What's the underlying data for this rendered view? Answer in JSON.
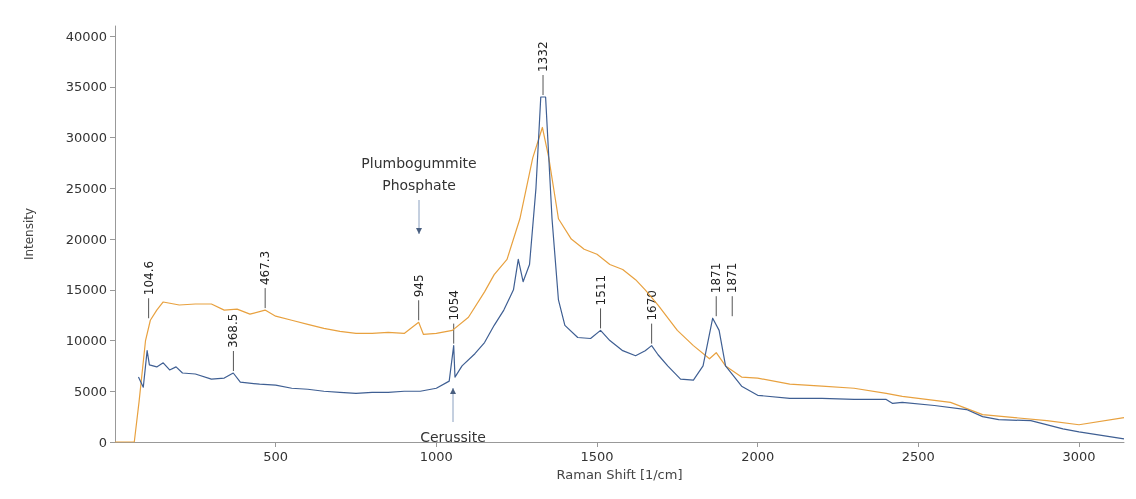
{
  "chart_data": {
    "type": "line",
    "xlabel": "Raman Shift [1/cm]",
    "ylabel": "Intensity",
    "xlim": [
      0,
      3140
    ],
    "xticks": [
      500,
      1000,
      1500,
      2000,
      2500,
      3000
    ],
    "ylim": [
      0,
      41000
    ],
    "yticks": [
      0,
      5000,
      10000,
      15000,
      20000,
      25000,
      30000,
      35000,
      40000
    ],
    "grid": false,
    "marker": "none",
    "line_style": "solid",
    "series": [
      {
        "color": "#e8a13f",
        "x": [
          0,
          60,
          75,
          95,
          110,
          130,
          150,
          200,
          250,
          300,
          340,
          380,
          420,
          467,
          500,
          550,
          600,
          650,
          700,
          750,
          800,
          850,
          900,
          945,
          960,
          1000,
          1050,
          1100,
          1150,
          1180,
          1220,
          1260,
          1300,
          1330,
          1350,
          1380,
          1420,
          1460,
          1500,
          1540,
          1580,
          1620,
          1650,
          1690,
          1750,
          1800,
          1850,
          1871,
          1900,
          1950,
          2000,
          2100,
          2200,
          2300,
          2400,
          2450,
          2500,
          2600,
          2700,
          2800,
          2900,
          3000,
          3140
        ],
        "values": [
          0,
          0,
          4000,
          10000,
          12000,
          13000,
          13800,
          13500,
          13600,
          13600,
          13000,
          13100,
          12600,
          13000,
          12400,
          12000,
          11600,
          11200,
          10900,
          10700,
          10700,
          10800,
          10700,
          11800,
          10600,
          10700,
          11000,
          12300,
          14800,
          16500,
          18000,
          22000,
          28000,
          31000,
          28000,
          22000,
          20000,
          19000,
          18500,
          17500,
          17000,
          16000,
          15000,
          13500,
          11000,
          9500,
          8200,
          8800,
          7500,
          6400,
          6300,
          5700,
          5500,
          5300,
          4800,
          4500,
          4300,
          3900,
          2700,
          2400,
          2100,
          1700,
          2400
        ]
      },
      {
        "color": "#3f5f93",
        "x": [
          73,
          88,
          100,
          107,
          130,
          150,
          170,
          190,
          210,
          250,
          300,
          340,
          368,
          390,
          450,
          500,
          550,
          600,
          650,
          700,
          750,
          800,
          850,
          900,
          950,
          1000,
          1040,
          1054,
          1058,
          1080,
          1120,
          1150,
          1180,
          1210,
          1240,
          1255,
          1270,
          1290,
          1310,
          1325,
          1340,
          1360,
          1380,
          1400,
          1440,
          1480,
          1511,
          1540,
          1580,
          1620,
          1650,
          1670,
          1690,
          1720,
          1760,
          1800,
          1830,
          1860,
          1880,
          1900,
          1950,
          2000,
          2100,
          2200,
          2300,
          2400,
          2420,
          2450,
          2550,
          2650,
          2700,
          2750,
          2850,
          2950,
          3000,
          3140
        ],
        "values": [
          6400,
          5400,
          9000,
          7600,
          7400,
          7800,
          7100,
          7400,
          6800,
          6700,
          6200,
          6300,
          6800,
          5900,
          5700,
          5600,
          5300,
          5200,
          5000,
          4900,
          4800,
          4900,
          4900,
          5000,
          5000,
          5300,
          6000,
          9500,
          6400,
          7500,
          8700,
          9800,
          11500,
          13000,
          15000,
          18000,
          15800,
          17500,
          25000,
          34000,
          34000,
          22000,
          14000,
          11500,
          10300,
          10200,
          11000,
          10000,
          9000,
          8500,
          9000,
          9500,
          8600,
          7500,
          6200,
          6100,
          7500,
          12200,
          11000,
          7500,
          5500,
          4600,
          4300,
          4300,
          4200,
          4200,
          3800,
          3900,
          3600,
          3200,
          2500,
          2200,
          2100,
          1300,
          1000,
          300
        ]
      }
    ],
    "annotations": [
      {
        "text": "104.6",
        "x": 104.6,
        "y": 12000
      },
      {
        "text": "368.5",
        "x": 368.5,
        "y": 6800
      },
      {
        "text": "467.3",
        "x": 467.3,
        "y": 13000
      },
      {
        "text": "945",
        "x": 945,
        "y": 11800
      },
      {
        "text": "1054",
        "x": 1054,
        "y": 9500
      },
      {
        "text": "1332",
        "x": 1332,
        "y": 34000
      },
      {
        "text": "1511",
        "x": 1511,
        "y": 11000
      },
      {
        "text": "1670",
        "x": 1670,
        "y": 9500
      },
      {
        "text": "1871",
        "x": 1871,
        "y": 12200
      },
      {
        "text": "1871",
        "x": 1871,
        "y": 12200
      },
      "Plumbogummite\nPhosphate",
      "Cerussite"
    ]
  }
}
